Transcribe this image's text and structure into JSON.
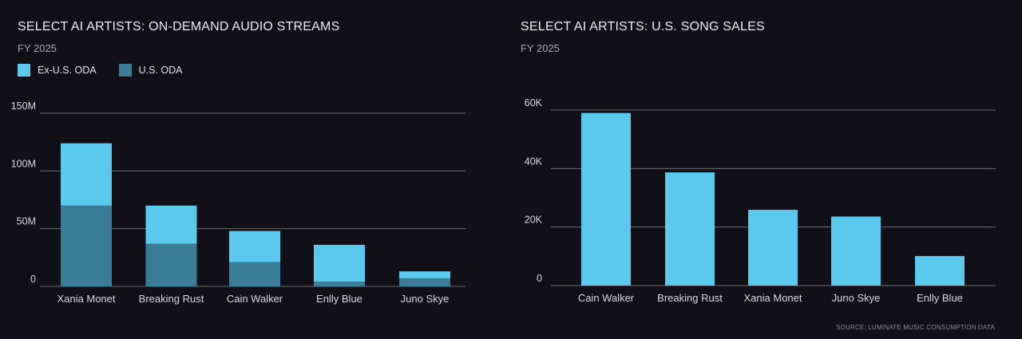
{
  "colors": {
    "background": "#111016",
    "ex_us": "#5bc8ee",
    "us": "#3a7c95",
    "grid": "#6b6b73",
    "axis_text": "#d9d9de"
  },
  "chart_data": [
    {
      "type": "bar",
      "stacked": true,
      "title": "SELECT AI ARTISTS: ON-DEMAND AUDIO STREAMS",
      "subtitle": "FY 2025",
      "categories": [
        "Xania Monet",
        "Breaking Rust",
        "Cain Walker",
        "Enlly Blue",
        "Juno Skye"
      ],
      "series": [
        {
          "name": "U.S. ODA",
          "color": "#3a7c95",
          "values": [
            70,
            37,
            21,
            4,
            7
          ]
        },
        {
          "name": "Ex-U.S. ODA",
          "color": "#5bc8ee",
          "values": [
            54,
            33,
            27,
            32,
            6
          ]
        }
      ],
      "legend": [
        {
          "label": "Ex-U.S. ODA",
          "color": "#5bc8ee"
        },
        {
          "label": "U.S. ODA",
          "color": "#3a7c95"
        }
      ],
      "yticks": [
        0,
        50,
        100,
        150
      ],
      "ytick_labels": [
        "0",
        "50M",
        "100M",
        "150M"
      ],
      "ylim": [
        0,
        150
      ],
      "unit": "millions of streams",
      "xlabel": "",
      "ylabel": "",
      "grid": true,
      "legend_position": "top-left"
    },
    {
      "type": "bar",
      "stacked": false,
      "title": "SELECT AI ARTISTS: U.S. SONG SALES",
      "subtitle": "FY 2025",
      "categories": [
        "Cain Walker",
        "Breaking Rust",
        "Xania Monet",
        "Juno Skye",
        "Enlly Blue"
      ],
      "series": [
        {
          "name": "U.S. Song Sales",
          "color": "#5bc8ee",
          "values": [
            59000,
            38700,
            25900,
            23600,
            10100
          ]
        }
      ],
      "yticks": [
        0,
        20000,
        40000,
        60000
      ],
      "ytick_labels": [
        "0",
        "20K",
        "40K",
        "60K"
      ],
      "ylim": [
        0,
        60000
      ],
      "xlabel": "",
      "ylabel": "",
      "grid": true
    }
  ],
  "source": "SOURCE: LUMINATE MUSIC CONSUMPTION DATA"
}
